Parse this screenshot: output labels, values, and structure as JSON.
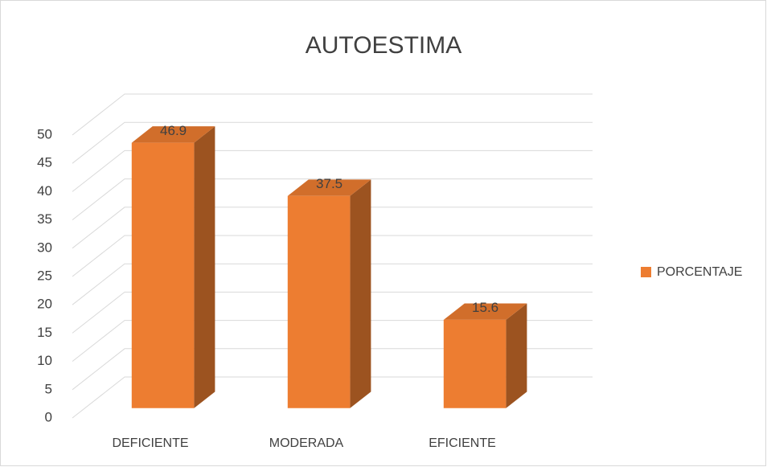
{
  "chart_data": {
    "type": "bar3d",
    "title": "AUTOESTIMA",
    "categories": [
      "DEFICIENTE",
      "MODERADA",
      "EFICIENTE"
    ],
    "series": [
      {
        "name": "PORCENTAJE",
        "color": "#ed7d31",
        "values": [
          46.9,
          37.5,
          15.6
        ]
      }
    ],
    "ylim": [
      0,
      50
    ],
    "yticks": [
      0,
      5,
      10,
      15,
      20,
      25,
      30,
      35,
      40,
      45,
      50
    ],
    "grid": true,
    "legend": "right"
  }
}
